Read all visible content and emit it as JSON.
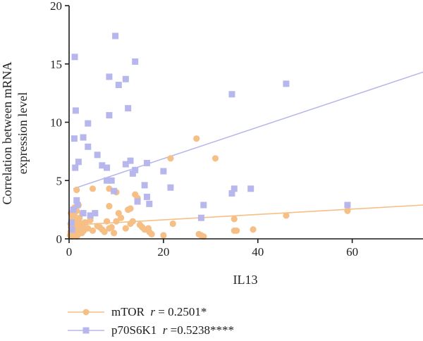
{
  "chart_data": {
    "type": "scatter",
    "xlabel": "IL13",
    "ylabel_lines": [
      "Correlation between mRNA",
      "expression level"
    ],
    "xlim": [
      0,
      75
    ],
    "ylim": [
      0,
      20
    ],
    "xticks": [
      "0",
      "20",
      "40",
      "60"
    ],
    "yticks": [
      "0",
      "5",
      "10",
      "15",
      "20"
    ],
    "grid": false,
    "legend_position": "bottom-left",
    "series": [
      {
        "name": "mTOR",
        "stat_prefix": "r",
        "stat_value": "= 0.2501*",
        "color": "#f5bf86",
        "marker": "circle",
        "trend": [
          [
            1.5,
            1.2
          ],
          [
            75,
            2.9
          ]
        ],
        "points": [
          [
            0.2,
            0.3
          ],
          [
            0.3,
            0.6
          ],
          [
            0.4,
            1.0
          ],
          [
            0.5,
            1.4
          ],
          [
            0.6,
            0.2
          ],
          [
            0.7,
            0.8
          ],
          [
            0.8,
            1.9
          ],
          [
            0.9,
            0.5
          ],
          [
            1.0,
            1.2
          ],
          [
            1.1,
            2.1
          ],
          [
            1.2,
            0.7
          ],
          [
            1.3,
            1.6
          ],
          [
            1.4,
            0.3
          ],
          [
            1.5,
            1.0
          ],
          [
            1.6,
            2.4
          ],
          [
            1.7,
            0.9
          ],
          [
            1.8,
            1.5
          ],
          [
            1.9,
            0.4
          ],
          [
            2.0,
            1.1
          ],
          [
            2.1,
            0.6
          ],
          [
            2.2,
            1.8
          ],
          [
            2.3,
            0.8
          ],
          [
            2.5,
            1.3
          ],
          [
            2.7,
            0.5
          ],
          [
            2.9,
            1.0
          ],
          [
            3.1,
            0.7
          ],
          [
            3.3,
            1.4
          ],
          [
            0.4,
            2.2
          ],
          [
            0.8,
            1.7
          ],
          [
            1.2,
            2.7
          ],
          [
            1.6,
            0.2
          ],
          [
            2.0,
            1.6
          ],
          [
            0.3,
            1.3
          ],
          [
            0.6,
            0.9
          ],
          [
            1.0,
            0.6
          ],
          [
            1.4,
            1.1
          ],
          [
            1.8,
            0.3
          ],
          [
            1.6,
            4.2
          ],
          [
            2.0,
            2.9
          ],
          [
            2.8,
            2.2
          ],
          [
            3.5,
            1.4
          ],
          [
            4.0,
            0.9
          ],
          [
            4.5,
            1.6
          ],
          [
            5.0,
            0.7
          ],
          [
            6.5,
            1.0
          ],
          [
            7.0,
            0.8
          ],
          [
            7.5,
            0.6
          ],
          [
            8.0,
            1.5
          ],
          [
            8.5,
            2.8
          ],
          [
            8.5,
            0.9
          ],
          [
            9.0,
            1.0
          ],
          [
            9.5,
            0.5
          ],
          [
            10.0,
            4.0
          ],
          [
            10.5,
            2.2
          ],
          [
            10.0,
            1.5
          ],
          [
            11.0,
            1.8
          ],
          [
            12.0,
            0.9
          ],
          [
            12.5,
            2.5
          ],
          [
            13.0,
            2.6
          ],
          [
            13.0,
            1.3
          ],
          [
            13.5,
            1.5
          ],
          [
            14.0,
            3.8
          ],
          [
            14.5,
            3.5
          ],
          [
            15.0,
            1.2
          ],
          [
            15.5,
            1.0
          ],
          [
            16.0,
            0.8
          ],
          [
            17.0,
            0.6
          ],
          [
            17.5,
            0.4
          ],
          [
            20.0,
            0.3
          ],
          [
            21.5,
            6.9
          ],
          [
            27.0,
            8.6
          ],
          [
            27.5,
            0.4
          ],
          [
            28.0,
            0.3
          ],
          [
            28.5,
            0.2
          ],
          [
            31.0,
            6.9
          ],
          [
            35.0,
            1.7
          ],
          [
            35.0,
            0.7
          ],
          [
            35.5,
            0.7
          ],
          [
            39.0,
            0.8
          ],
          [
            46.0,
            2.0
          ],
          [
            59.0,
            2.4
          ],
          [
            5.0,
            4.3
          ],
          [
            6.0,
            1.1
          ],
          [
            8.5,
            4.3
          ],
          [
            16.8,
            0.9
          ],
          [
            22.0,
            1.3
          ]
        ]
      },
      {
        "name": "p70S6K1",
        "stat_prefix": "r",
        "stat_value": "=0.5238****",
        "color": "#b7b7ee",
        "marker": "square",
        "trend": [
          [
            0.9,
            4.3
          ],
          [
            75,
            14.3
          ]
        ],
        "points": [
          [
            1.2,
            15.6
          ],
          [
            1.4,
            11.0
          ],
          [
            1.1,
            8.6
          ],
          [
            2.0,
            6.6
          ],
          [
            1.3,
            6.1
          ],
          [
            1.6,
            3.3
          ],
          [
            1.8,
            2.9
          ],
          [
            0.9,
            2.5
          ],
          [
            0.5,
            1.4
          ],
          [
            0.6,
            0.8
          ],
          [
            3.0,
            8.7
          ],
          [
            3.0,
            2.2
          ],
          [
            4.0,
            9.9
          ],
          [
            4.0,
            7.9
          ],
          [
            4.5,
            2.0
          ],
          [
            5.5,
            2.2
          ],
          [
            6.0,
            7.2
          ],
          [
            7.0,
            6.3
          ],
          [
            8.0,
            6.1
          ],
          [
            8.0,
            5.0
          ],
          [
            8.5,
            10.6
          ],
          [
            8.5,
            13.9
          ],
          [
            9.0,
            5.0
          ],
          [
            9.5,
            4.1
          ],
          [
            9.8,
            17.4
          ],
          [
            10.5,
            13.2
          ],
          [
            12.0,
            13.7
          ],
          [
            12.0,
            6.4
          ],
          [
            12.5,
            11.2
          ],
          [
            13.0,
            6.7
          ],
          [
            13.5,
            5.6
          ],
          [
            14.0,
            15.2
          ],
          [
            14.0,
            5.9
          ],
          [
            14.5,
            3.2
          ],
          [
            16.0,
            4.6
          ],
          [
            16.5,
            3.6
          ],
          [
            16.5,
            6.5
          ],
          [
            17.0,
            3.0
          ],
          [
            20.0,
            5.8
          ],
          [
            21.5,
            4.4
          ],
          [
            28.0,
            1.8
          ],
          [
            28.5,
            2.9
          ],
          [
            34.5,
            12.4
          ],
          [
            34.5,
            3.9
          ],
          [
            35.0,
            4.3
          ],
          [
            38.5,
            4.3
          ],
          [
            46.0,
            13.3
          ],
          [
            59.0,
            2.9
          ]
        ]
      }
    ]
  }
}
